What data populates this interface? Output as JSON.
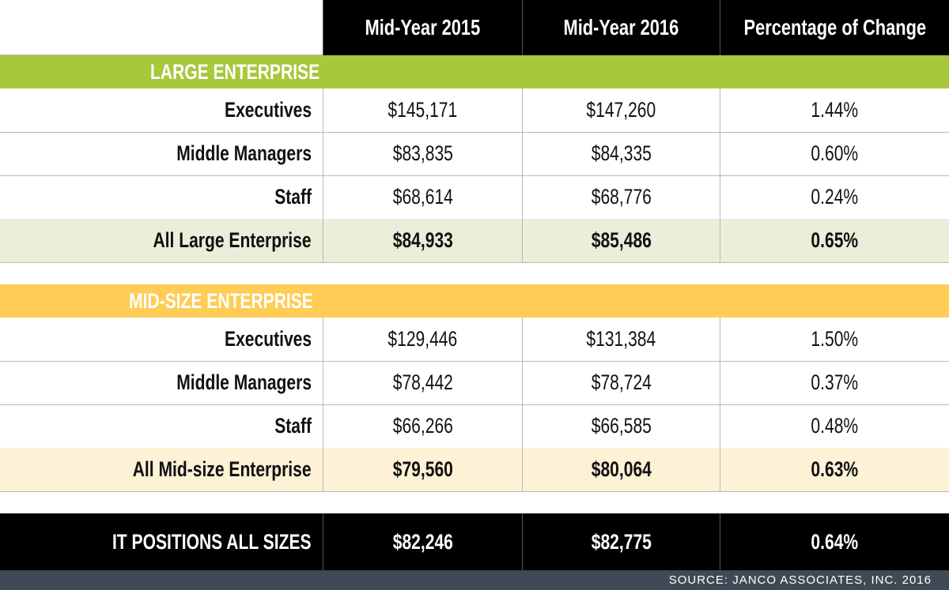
{
  "chart_data": {
    "type": "table",
    "columns": [
      "Mid-Year 2015",
      "Mid-Year 2016",
      "Percentage of Change"
    ],
    "sections": [
      {
        "title": "LARGE ENTERPRISE",
        "color": "#a6c93a",
        "rows": [
          {
            "label": "Executives",
            "values": [
              "$145,171",
              "$147,260",
              "1.44%"
            ]
          },
          {
            "label": "Middle Managers",
            "values": [
              "$83,835",
              "$84,335",
              "0.60%"
            ]
          },
          {
            "label": "Staff",
            "values": [
              "$68,614",
              "$68,776",
              "0.24%"
            ]
          }
        ],
        "total": {
          "label": "All Large Enterprise",
          "values": [
            "$84,933",
            "$85,486",
            "0.65%"
          ]
        }
      },
      {
        "title": "MID-SIZE ENTERPRISE",
        "color": "#ffcc55",
        "rows": [
          {
            "label": "Executives",
            "values": [
              "$129,446",
              "$131,384",
              "1.50%"
            ]
          },
          {
            "label": "Middle Managers",
            "values": [
              "$78,442",
              "$78,724",
              "0.37%"
            ]
          },
          {
            "label": "Staff",
            "values": [
              "$66,266",
              "$66,585",
              "0.48%"
            ]
          }
        ],
        "total": {
          "label": "All Mid-size Enterprise",
          "values": [
            "$79,560",
            "$80,064",
            "0.63%"
          ]
        }
      }
    ],
    "grand_total": {
      "label": "IT POSITIONS ALL SIZES",
      "values": [
        "$82,246",
        "$82,775",
        "0.64%"
      ]
    },
    "source": "SOURCE: JANCO ASSOCIATES, INC. 2016"
  }
}
